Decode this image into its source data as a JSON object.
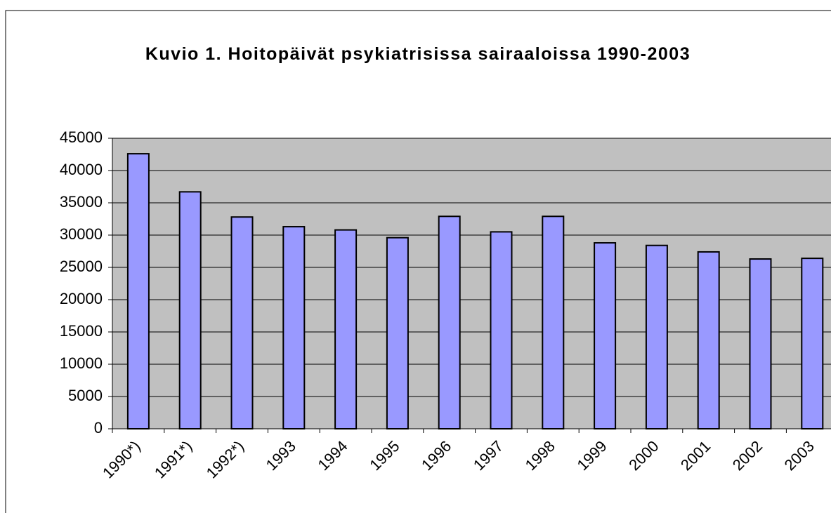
{
  "chart_data": {
    "type": "bar",
    "title": "Kuvio 1. Hoitopäivät psykiatrisissa sairaaloissa 1990-2003",
    "categories": [
      "1990*)",
      "1991*)",
      "1992*)",
      "1993",
      "1994",
      "1995",
      "1996",
      "1997",
      "1998",
      "1999",
      "2000",
      "2001",
      "2002",
      "2003"
    ],
    "values": [
      42600,
      36700,
      32800,
      31300,
      30800,
      29600,
      32900,
      30500,
      32900,
      28800,
      28400,
      27400,
      26300,
      26400
    ],
    "color": "#9999ff",
    "ylim": [
      0,
      45000
    ],
    "yticks": [
      0,
      5000,
      10000,
      15000,
      20000,
      25000,
      30000,
      35000,
      40000,
      45000
    ],
    "grid": true
  }
}
